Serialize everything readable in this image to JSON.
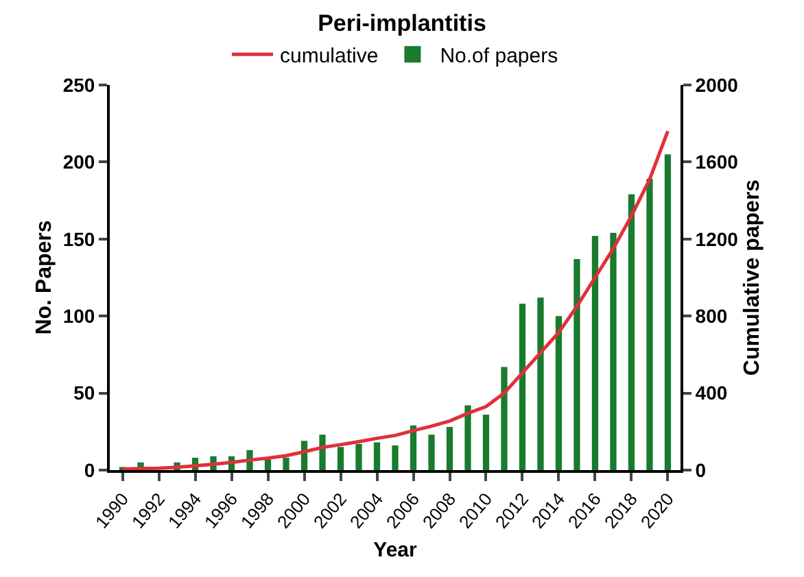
{
  "chart_data": {
    "type": "bar",
    "title": "Peri-implantitis",
    "xlabel": "Year",
    "ylabel": "No. Papers",
    "y2label": "Cumulative papers",
    "x": [
      1990,
      1991,
      1992,
      1993,
      1994,
      1995,
      1996,
      1997,
      1998,
      1999,
      2000,
      2001,
      2002,
      2003,
      2004,
      2005,
      2006,
      2007,
      2008,
      2009,
      2010,
      2011,
      2012,
      2013,
      2014,
      2015,
      2016,
      2017,
      2018,
      2019,
      2020
    ],
    "series": [
      {
        "name": "cumulative",
        "type": "line",
        "axis": "y2",
        "color": "#e0303a",
        "values": [
          5,
          8,
          10,
          15,
          22,
          30,
          40,
          52,
          62,
          75,
          95,
          118,
          132,
          148,
          165,
          180,
          205,
          228,
          255,
          295,
          330,
          400,
          505,
          610,
          715,
          850,
          1000,
          1150,
          1320,
          1510,
          1760
        ]
      },
      {
        "name": "No.of papers",
        "color": "#1a7a2e",
        "values": [
          2,
          5,
          0,
          5,
          8,
          9,
          9,
          13,
          7,
          8,
          19,
          23,
          15,
          17,
          18,
          16,
          29,
          23,
          28,
          42,
          36,
          67,
          108,
          112,
          100,
          137,
          152,
          154,
          179,
          189,
          205
        ]
      }
    ],
    "xlim": [
      1989.3,
      2020.7
    ],
    "xticks": [
      1990,
      1992,
      1994,
      1996,
      1998,
      2000,
      2002,
      2004,
      2006,
      2008,
      2010,
      2012,
      2014,
      2016,
      2018,
      2020
    ],
    "ylim": [
      0,
      250
    ],
    "yticks": [
      0,
      50,
      100,
      150,
      200,
      250
    ],
    "y2lim": [
      0,
      2000
    ],
    "y2ticks": [
      0,
      400,
      800,
      1200,
      1600,
      2000
    ],
    "grid": false,
    "legend": "top",
    "marker": "none",
    "line_style": "solid"
  }
}
